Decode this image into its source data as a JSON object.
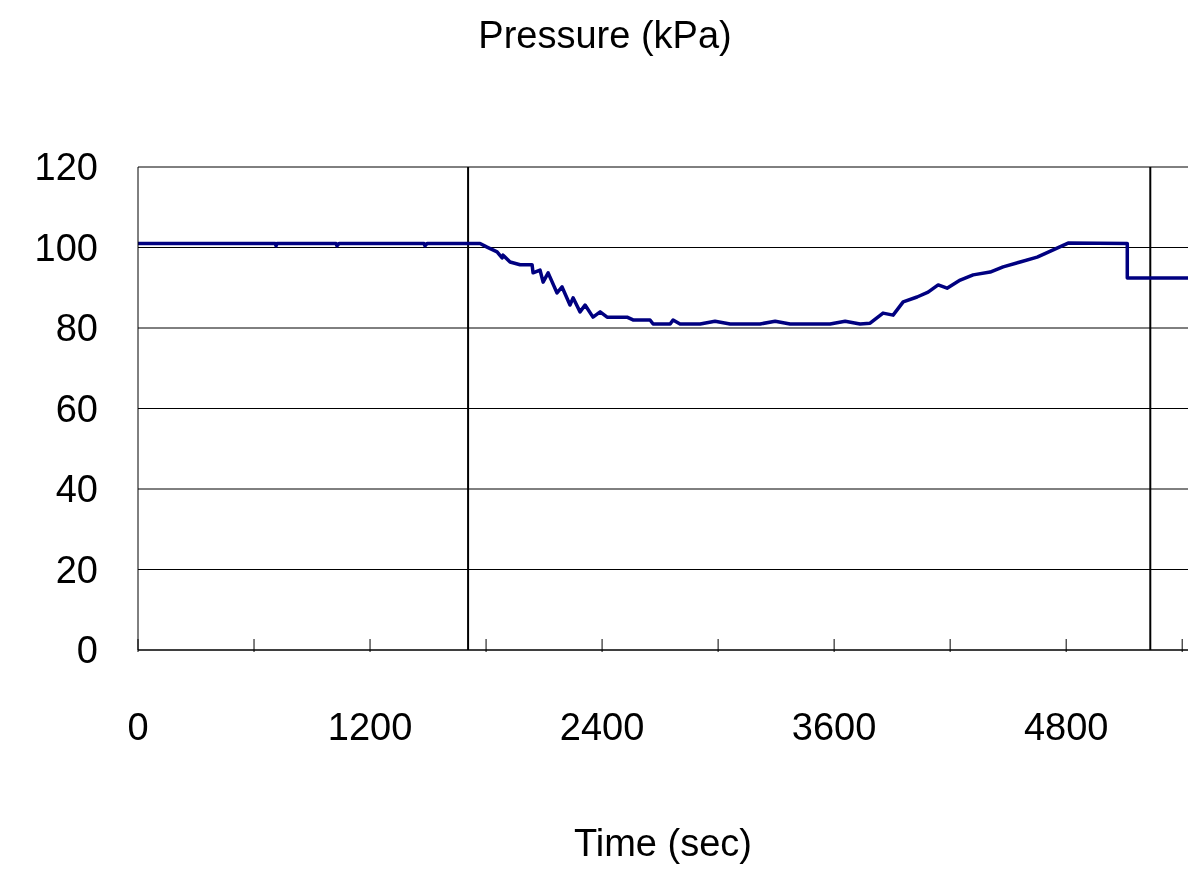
{
  "chart_data": {
    "type": "line",
    "title": "Pressure (kPa)",
    "xlabel": "Time (sec)",
    "xlim": [
      0,
      5430
    ],
    "xticks": [
      0,
      {
        "value": 600,
        "label": null
      },
      1200,
      {
        "value": 1800,
        "label": null
      },
      2400,
      {
        "value": 3000,
        "label": null
      },
      3600,
      {
        "value": 4200,
        "label": null
      },
      4800,
      {
        "value": 5400,
        "label": null
      }
    ],
    "ylim": [
      0,
      120
    ],
    "yticks": [
      0,
      20,
      40,
      60,
      80,
      100,
      120
    ],
    "grid": "y",
    "legend": false,
    "marker": "none",
    "line_style": "solid",
    "ref_lines": [
      {
        "axis": "x",
        "value": 1707,
        "color": "#000000"
      },
      {
        "axis": "x",
        "value": 5235,
        "color": "#000000"
      }
    ],
    "series": [
      {
        "color": "#000080",
        "x": [
          0,
          709,
          714,
          719,
          1024,
          1029,
          1040,
          1479,
          1484,
          1495,
          1769,
          1805,
          1857,
          1883,
          1888,
          1924,
          1976,
          2038,
          2043,
          2079,
          2095,
          2121,
          2167,
          2193,
          2234,
          2250,
          2286,
          2312,
          2353,
          2390,
          2426,
          2529,
          2560,
          2648,
          2664,
          2752,
          2767,
          2803,
          2907,
          2984,
          3062,
          3217,
          3295,
          3372,
          3579,
          3657,
          3734,
          3786,
          3853,
          3905,
          3957,
          4029,
          4086,
          4138,
          4184,
          4252,
          4319,
          4407,
          4474,
          4562,
          4650,
          4733,
          4810,
          5116,
          5116,
          5430
        ],
        "values": [
          101,
          101,
          100.4,
          101,
          101,
          100.4,
          101,
          101,
          100.4,
          101,
          101,
          100.1,
          98.9,
          97.4,
          98.1,
          96.4,
          95.7,
          95.7,
          93.7,
          94.4,
          91.4,
          93.7,
          88.7,
          90.2,
          85.7,
          87.5,
          84,
          85.7,
          82.7,
          84,
          82.7,
          82.7,
          82,
          82,
          81,
          81,
          82,
          81,
          81,
          81.7,
          81,
          81,
          81.7,
          81,
          81,
          81.7,
          81,
          81.2,
          83.7,
          83.2,
          86.5,
          87.7,
          88.9,
          90.7,
          89.9,
          91.9,
          93.2,
          93.9,
          95.2,
          96.4,
          97.6,
          99.4,
          101.1,
          101,
          92.4,
          92.4
        ]
      }
    ]
  }
}
